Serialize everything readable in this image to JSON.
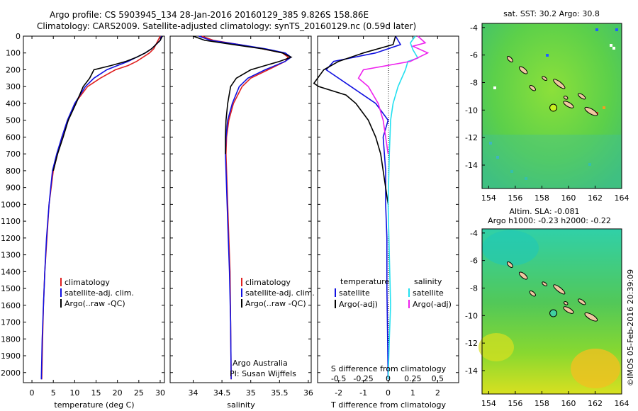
{
  "header": {
    "line1": "Argo profile: CS 5903945_134 28-Jan-2016 20160129_385 9.826S 158.86E",
    "line2": "Climatology: CARS2009. Satellite-adjusted climatology: synTS_20160129.nc (0.59d later)"
  },
  "depth_ticks": [
    "0",
    "100",
    "200",
    "300",
    "400",
    "500",
    "600",
    "700",
    "800",
    "900",
    "1000",
    "1100",
    "1200",
    "1300",
    "1400",
    "1500",
    "1600",
    "1700",
    "1800",
    "1900",
    "2000"
  ],
  "colors": {
    "climatology": "#e02020",
    "satellite": "#1010e0",
    "argo": "#000000",
    "sat_salinity": "#22e0f0",
    "argo_salinity": "#ee22ee"
  },
  "chart_data": [
    {
      "type": "line",
      "xlabel": "temperature (deg C)",
      "x_ticks": [
        "0",
        "5",
        "10",
        "15",
        "20",
        "25",
        "30"
      ],
      "xlim": [
        -2,
        31
      ],
      "ylim": [
        2060,
        0
      ],
      "legend": [
        "climatology",
        "satellite-adj. clim.",
        "Argo(..raw -QC)"
      ],
      "series": [
        {
          "name": "climatology",
          "color": "#e02020",
          "x": [
            30.0,
            29.5,
            29.0,
            28.5,
            27.5,
            26.0,
            24.5,
            22.5,
            19.5,
            16.0,
            13.0,
            10.0,
            8.5,
            7.0,
            6.0,
            5.0,
            4.0,
            3.5,
            3.0,
            2.7,
            2.5,
            2.3
          ],
          "y": [
            0,
            25,
            50,
            75,
            100,
            125,
            150,
            175,
            200,
            250,
            300,
            400,
            500,
            600,
            700,
            800,
            1000,
            1200,
            1400,
            1600,
            1800,
            2040
          ]
        },
        {
          "name": "satellite-adj. clim.",
          "color": "#1010e0",
          "x": [
            30.3,
            30.0,
            29.0,
            28.0,
            26.5,
            24.5,
            22.5,
            20.0,
            17.5,
            14.5,
            12.5,
            10.0,
            8.3,
            7.0,
            5.8,
            4.8,
            4.0,
            3.4,
            3.0,
            2.7,
            2.4,
            2.2
          ],
          "y": [
            0,
            25,
            50,
            75,
            100,
            125,
            150,
            175,
            200,
            250,
            300,
            400,
            500,
            600,
            700,
            800,
            1000,
            1200,
            1400,
            1600,
            1800,
            2040
          ]
        },
        {
          "name": "Argo(..raw -QC)",
          "color": "#000000",
          "x": [
            30.5,
            30.0,
            29.0,
            28.0,
            26.5,
            24.5,
            22.0,
            18.5,
            14.5,
            13.5,
            12.0,
            10.3,
            8.5,
            7.3,
            6.0,
            5.0
          ],
          "y": [
            0,
            25,
            50,
            75,
            100,
            125,
            150,
            175,
            200,
            250,
            300,
            400,
            500,
            600,
            700,
            800
          ]
        }
      ]
    },
    {
      "type": "line",
      "xlabel": "salinity",
      "x_ticks": [
        "34",
        "34.5",
        "35",
        "35.5",
        "36"
      ],
      "xlim": [
        33.6,
        36.05
      ],
      "ylim": [
        2060,
        0
      ],
      "legend": [
        "climatology",
        "satellite-adj. clim.",
        "Argo(..raw -QC)"
      ],
      "annotation": [
        "Argo Australia",
        "PI: Susan Wijffels"
      ],
      "series": [
        {
          "name": "climatology",
          "color": "#e02020",
          "x": [
            34.15,
            34.35,
            34.8,
            35.2,
            35.55,
            35.65,
            35.6,
            35.3,
            35.0,
            34.85,
            34.7,
            34.62,
            34.58,
            34.57,
            34.58,
            34.6,
            34.62,
            34.64,
            34.65,
            34.66
          ],
          "y": [
            0,
            25,
            50,
            75,
            100,
            125,
            150,
            200,
            250,
            300,
            400,
            500,
            600,
            700,
            800,
            1000,
            1200,
            1400,
            1700,
            2040
          ]
        },
        {
          "name": "satellite-adj. clim.",
          "color": "#1010e0",
          "x": [
            34.1,
            34.3,
            34.8,
            35.25,
            35.6,
            35.7,
            35.6,
            35.25,
            34.95,
            34.8,
            34.68,
            34.6,
            34.57,
            34.56,
            34.57,
            34.59,
            34.61,
            34.63,
            34.65,
            34.66
          ],
          "y": [
            0,
            25,
            50,
            75,
            100,
            125,
            150,
            200,
            250,
            300,
            400,
            500,
            600,
            700,
            800,
            1000,
            1200,
            1400,
            1700,
            2040
          ]
        },
        {
          "name": "Argo(..raw -QC)",
          "color": "#000000",
          "x": [
            34.0,
            34.2,
            34.7,
            35.2,
            35.55,
            35.7,
            35.5,
            35.0,
            34.75,
            34.65,
            34.6,
            34.57,
            34.56,
            34.56
          ],
          "y": [
            0,
            25,
            50,
            75,
            100,
            125,
            150,
            200,
            250,
            300,
            400,
            500,
            600,
            700
          ]
        }
      ]
    },
    {
      "type": "line",
      "xlabel": "T difference from climatology",
      "x_ticks": [
        "-2",
        "-1",
        "0",
        "1",
        "2"
      ],
      "top_label": "S difference from climatology",
      "top_ticks": [
        "-0.5",
        "-0.25",
        "0",
        "0.25",
        "0.5"
      ],
      "xlim": [
        -2.85,
        2.85
      ],
      "ylim": [
        2060,
        0
      ],
      "legend_headers": [
        "temperature",
        "salinity"
      ],
      "legend": [
        "satellite",
        "Argo(-adj)",
        "satellite",
        "Argo(-adj)"
      ],
      "series": [
        {
          "name": "satellite",
          "color": "#1010e0",
          "x": [
            0.3,
            0.5,
            -0.5,
            -2.2,
            -2.5,
            -1.5,
            -0.5,
            0.0,
            -0.2,
            -0.1,
            -0.1,
            -0.05,
            -0.05,
            -0.02,
            0.0
          ],
          "y": [
            0,
            50,
            100,
            150,
            200,
            300,
            400,
            500,
            600,
            800,
            1000,
            1200,
            1500,
            1800,
            2040
          ]
        },
        {
          "name": "Argo(-adj)",
          "color": "#000000",
          "x": [
            0.3,
            0.2,
            -1.0,
            -2.0,
            -2.6,
            -3.0,
            -2.8,
            -1.7,
            -1.3,
            -0.8,
            -0.5,
            -0.3,
            -0.2,
            -0.1,
            0.0
          ],
          "y": [
            0,
            50,
            100,
            150,
            200,
            280,
            300,
            350,
            400,
            500,
            600,
            700,
            800,
            900,
            1000
          ]
        },
        {
          "name": "satellite",
          "color": "#22e0f0",
          "x": [
            1.1,
            0.9,
            1.0,
            1.2,
            0.8,
            0.7,
            0.4,
            0.2,
            0.1,
            0.05,
            0.0,
            0.05,
            0.1,
            0.05,
            0.0
          ],
          "y": [
            0,
            40,
            80,
            130,
            150,
            200,
            300,
            400,
            500,
            700,
            1000,
            1300,
            1600,
            1800,
            2040
          ]
        },
        {
          "name": "Argo(-adj)",
          "color": "#ee22ee",
          "x": [
            1.2,
            1.5,
            1.0,
            1.6,
            0.9,
            -1.0,
            -1.2,
            -0.8,
            -0.4,
            -0.2,
            -0.1,
            0.0
          ],
          "y": [
            0,
            40,
            60,
            100,
            150,
            200,
            250,
            300,
            400,
            500,
            600,
            700
          ]
        }
      ]
    }
  ],
  "maps": [
    {
      "title": "sat. SST: 30.2  Argo: 30.8",
      "x_ticks": [
        "154",
        "156",
        "158",
        "160",
        "162",
        "164"
      ],
      "y_ticks": [
        "-4",
        "-6",
        "-8",
        "-10",
        "-12",
        "-14"
      ],
      "marker": {
        "lon": 158.86,
        "lat": -9.83,
        "color": "#c8f020"
      }
    },
    {
      "title_line1": "Altim. SLA: -0.081",
      "title_line2": "Argo h1000: -0.23  h2000: -0.22",
      "x_ticks": [
        "154",
        "156",
        "158",
        "160",
        "162",
        "164"
      ],
      "y_ticks": [
        "-4",
        "-6",
        "-8",
        "-10",
        "-12",
        "-14"
      ],
      "marker": {
        "lon": 158.86,
        "lat": -9.83,
        "color": "#40d0a0"
      }
    }
  ],
  "credit": "©IMOS 05-Feb-2016 20:39:09"
}
